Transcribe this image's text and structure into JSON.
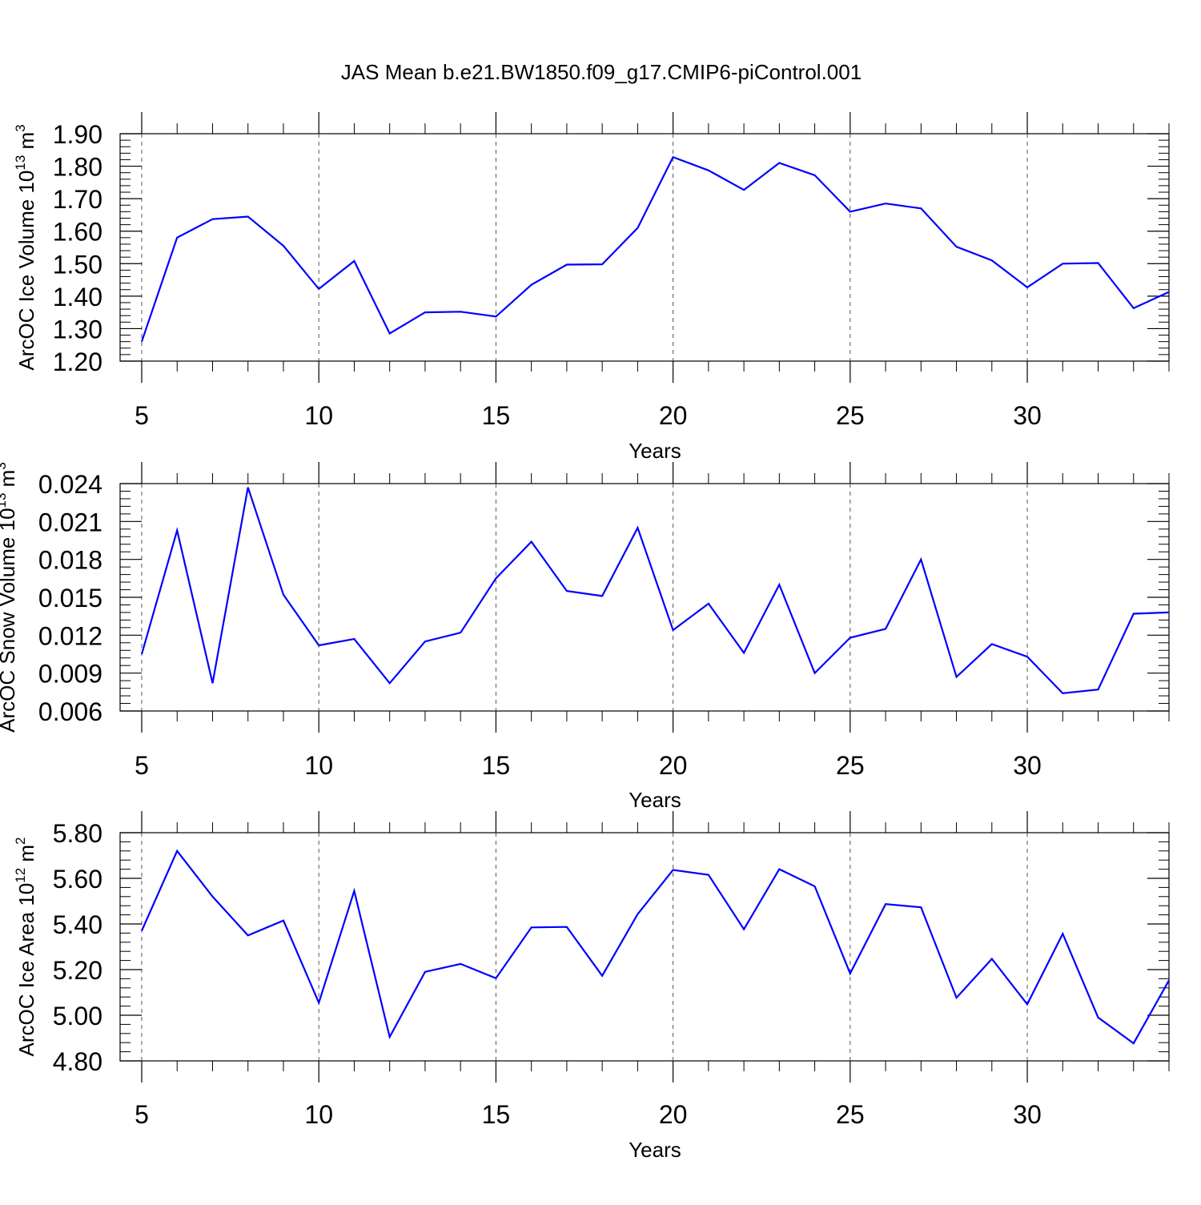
{
  "title": "JAS Mean b.e21.BW1850.f09_g17.CMIP6-piControl.001",
  "line_color": "#0000ff",
  "chart_data": [
    {
      "type": "line",
      "id": "ice-volume",
      "xlabel": "Years",
      "ylabel": "ArcOC Ice Volume 10",
      "ylabel_sup": "13",
      "ylabel_unit": " m",
      "ylabel_unit_sup": "3",
      "xlim": [
        5,
        34
      ],
      "ylim": [
        1.2,
        1.9
      ],
      "x_ticks": [
        5,
        10,
        15,
        20,
        25,
        30
      ],
      "y_ticks": [
        "1.20",
        "1.30",
        "1.40",
        "1.50",
        "1.60",
        "1.70",
        "1.80",
        "1.90"
      ],
      "grid_x": true,
      "series": [
        {
          "x": [
            5,
            6,
            7,
            8,
            9,
            10,
            11,
            12,
            13,
            14,
            15,
            16,
            17,
            18,
            19,
            20,
            21,
            22,
            23,
            24,
            25,
            26,
            27,
            28,
            29,
            30,
            31,
            32,
            33,
            34
          ],
          "values": [
            1.26,
            1.58,
            1.637,
            1.645,
            1.555,
            1.422,
            1.508,
            1.285,
            1.35,
            1.352,
            1.337,
            1.435,
            1.497,
            1.498,
            1.61,
            1.828,
            1.787,
            1.727,
            1.81,
            1.772,
            1.66,
            1.685,
            1.67,
            1.552,
            1.51,
            1.427,
            1.5,
            1.502,
            1.363,
            1.413
          ]
        }
      ]
    },
    {
      "type": "line",
      "id": "snow-volume",
      "xlabel": "Years",
      "ylabel": "ArcOC Snow Volume 10",
      "ylabel_sup": "13",
      "ylabel_unit": " m",
      "ylabel_unit_sup": "3",
      "xlim": [
        5,
        34
      ],
      "ylim": [
        0.006,
        0.024
      ],
      "x_ticks": [
        5,
        10,
        15,
        20,
        25,
        30
      ],
      "y_ticks": [
        "0.006",
        "0.009",
        "0.012",
        "0.015",
        "0.018",
        "0.021",
        "0.024"
      ],
      "grid_x": true,
      "series": [
        {
          "x": [
            5,
            6,
            7,
            8,
            9,
            10,
            11,
            12,
            13,
            14,
            15,
            16,
            17,
            18,
            19,
            20,
            21,
            22,
            23,
            24,
            25,
            26,
            27,
            28,
            29,
            30,
            31,
            32,
            33,
            34
          ],
          "values": [
            0.0105,
            0.0203,
            0.0082,
            0.0237,
            0.0152,
            0.0112,
            0.0117,
            0.0082,
            0.0115,
            0.0122,
            0.0165,
            0.0194,
            0.0155,
            0.0151,
            0.0205,
            0.0124,
            0.0145,
            0.0106,
            0.016,
            0.009,
            0.0118,
            0.0125,
            0.018,
            0.0087,
            0.0113,
            0.0103,
            0.0074,
            0.0077,
            0.0137,
            0.0138
          ]
        }
      ]
    },
    {
      "type": "line",
      "id": "ice-area",
      "xlabel": "Years",
      "ylabel": "ArcOC Ice Area 10",
      "ylabel_sup": "12",
      "ylabel_unit": " m",
      "ylabel_unit_sup": "2",
      "xlim": [
        5,
        34
      ],
      "ylim": [
        4.8,
        5.8
      ],
      "x_ticks": [
        5,
        10,
        15,
        20,
        25,
        30
      ],
      "y_ticks": [
        "4.80",
        "5.00",
        "5.20",
        "5.40",
        "5.60",
        "5.80"
      ],
      "grid_x": true,
      "series": [
        {
          "x": [
            5,
            6,
            7,
            8,
            9,
            10,
            11,
            12,
            13,
            14,
            15,
            16,
            17,
            18,
            19,
            20,
            21,
            22,
            23,
            24,
            25,
            26,
            27,
            28,
            29,
            30,
            31,
            32,
            33,
            34
          ],
          "values": [
            5.37,
            5.72,
            5.52,
            5.35,
            5.415,
            5.055,
            5.545,
            4.905,
            5.19,
            5.225,
            5.162,
            5.385,
            5.387,
            5.173,
            5.443,
            5.637,
            5.615,
            5.377,
            5.64,
            5.565,
            5.183,
            5.487,
            5.473,
            5.077,
            5.247,
            5.048,
            5.357,
            4.99,
            4.877,
            5.153
          ]
        }
      ]
    }
  ]
}
